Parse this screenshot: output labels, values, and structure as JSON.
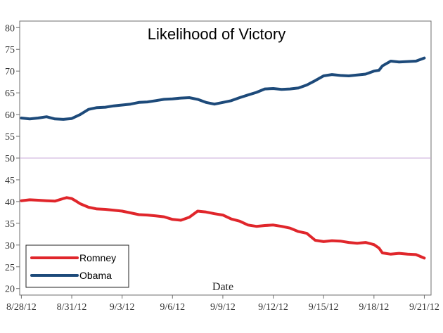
{
  "chart_data": {
    "type": "line",
    "title": "Likelihood of Victory",
    "xlabel": "Date",
    "ylabel": "",
    "ylim": [
      18.5,
      81.5
    ],
    "yticks": [
      20,
      25,
      30,
      35,
      40,
      45,
      50,
      55,
      60,
      65,
      70,
      75,
      80
    ],
    "x_tick_labels": [
      "8/28/12",
      "8/31/12",
      "9/3/12",
      "9/6/12",
      "9/9/12",
      "9/12/12",
      "9/15/12",
      "9/18/12",
      "9/21/12"
    ],
    "x_tick_days": [
      0,
      3,
      6,
      9,
      12,
      15,
      18,
      21,
      24
    ],
    "xlim_days": [
      -0.1,
      24.4
    ],
    "reference_line": {
      "y": 50,
      "color": "#c9a8d8"
    },
    "grid": false,
    "legend_position": "bottom-left",
    "series": [
      {
        "name": "Romney",
        "color": "#e0262b",
        "x": [
          0,
          0.5,
          1,
          1.5,
          2,
          2.5,
          2.7,
          3,
          3.3,
          3.5,
          4,
          4.5,
          5,
          5.5,
          6,
          6.5,
          7,
          7.5,
          8,
          8.5,
          9,
          9.5,
          10,
          10.5,
          11,
          11.5,
          12,
          12.5,
          13,
          13.5,
          14,
          14.5,
          15,
          15.5,
          16,
          16.5,
          17,
          17.5,
          18,
          18.5,
          19,
          19.5,
          20,
          20.5,
          21,
          21.3,
          21.5,
          22,
          22.5,
          23,
          23.5,
          24
        ],
        "y": [
          40.2,
          40.4,
          40.3,
          40.2,
          40.1,
          40.7,
          40.9,
          40.7,
          40.0,
          39.5,
          38.7,
          38.3,
          38.2,
          38.0,
          37.8,
          37.4,
          37.0,
          36.9,
          36.7,
          36.5,
          35.9,
          35.7,
          36.4,
          37.8,
          37.6,
          37.2,
          36.9,
          36.0,
          35.5,
          34.6,
          34.3,
          34.5,
          34.6,
          34.3,
          33.9,
          33.1,
          32.7,
          31.1,
          30.8,
          31.0,
          30.9,
          30.6,
          30.4,
          30.6,
          30.1,
          29.3,
          28.2,
          27.9,
          28.1,
          27.9,
          27.8,
          27.0
        ]
      },
      {
        "name": "Obama",
        "color": "#1d4a7a",
        "x": [
          0,
          0.5,
          1,
          1.5,
          2,
          2.5,
          3,
          3.5,
          4,
          4.5,
          5,
          5.5,
          6,
          6.5,
          7,
          7.5,
          8,
          8.5,
          9,
          9.5,
          10,
          10.5,
          11,
          11.5,
          12,
          12.5,
          13,
          13.5,
          14,
          14.5,
          15,
          15.5,
          16,
          16.5,
          17,
          17.5,
          18,
          18.5,
          19,
          19.5,
          20,
          20.5,
          21,
          21.3,
          21.5,
          22,
          22.5,
          23,
          23.5,
          24
        ],
        "y": [
          59.2,
          59.0,
          59.2,
          59.5,
          59.0,
          58.9,
          59.1,
          60.0,
          61.2,
          61.6,
          61.7,
          62.0,
          62.2,
          62.4,
          62.8,
          62.9,
          63.2,
          63.5,
          63.6,
          63.8,
          63.9,
          63.5,
          62.8,
          62.4,
          62.8,
          63.2,
          63.9,
          64.5,
          65.1,
          65.9,
          66.0,
          65.8,
          65.9,
          66.1,
          66.8,
          67.8,
          68.9,
          69.2,
          69.0,
          68.9,
          69.1,
          69.3,
          70.0,
          70.2,
          71.2,
          72.3,
          72.1,
          72.2,
          72.3,
          73.0
        ]
      }
    ]
  }
}
